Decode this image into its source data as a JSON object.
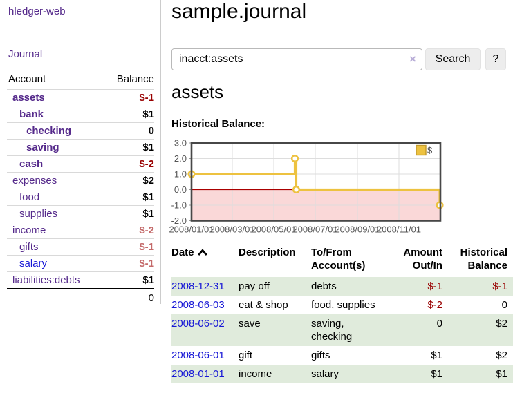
{
  "brand": "hledger-web",
  "nav": {
    "journal": "Journal"
  },
  "sidebar": {
    "header": {
      "account": "Account",
      "balance": "Balance"
    },
    "rows": [
      {
        "name": "assets",
        "balance": "$-1",
        "depth": 1,
        "active": true,
        "amount_class": "neg-strong",
        "link_class": ""
      },
      {
        "name": "bank",
        "balance": "$1",
        "depth": 2,
        "active": true,
        "amount_class": "",
        "link_class": ""
      },
      {
        "name": "checking",
        "balance": "0",
        "depth": 3,
        "active": true,
        "amount_class": "",
        "link_class": ""
      },
      {
        "name": "saving",
        "balance": "$1",
        "depth": 3,
        "active": true,
        "amount_class": "",
        "link_class": ""
      },
      {
        "name": "cash",
        "balance": "$-2",
        "depth": 2,
        "active": true,
        "amount_class": "neg-strong",
        "link_class": ""
      },
      {
        "name": "expenses",
        "balance": "$2",
        "depth": 1,
        "active": false,
        "amount_class": "",
        "link_class": ""
      },
      {
        "name": "food",
        "balance": "$1",
        "depth": 2,
        "active": false,
        "amount_class": "",
        "link_class": ""
      },
      {
        "name": "supplies",
        "balance": "$1",
        "depth": 2,
        "active": false,
        "amount_class": "",
        "link_class": ""
      },
      {
        "name": "income",
        "balance": "$-2",
        "depth": 1,
        "active": false,
        "amount_class": "neg-soft",
        "link_class": ""
      },
      {
        "name": "gifts",
        "balance": "$-1",
        "depth": 2,
        "active": false,
        "amount_class": "neg-soft",
        "link_class": ""
      },
      {
        "name": "salary",
        "balance": "$-1",
        "depth": 2,
        "active": false,
        "amount_class": "neg-soft",
        "link_class": "blue"
      },
      {
        "name": "liabilities:debts",
        "balance": "$1",
        "depth": 1,
        "active": false,
        "amount_class": "",
        "link_class": ""
      }
    ],
    "total": "0"
  },
  "main": {
    "title": "sample.journal",
    "search": {
      "value": "inacct:assets",
      "clear": "×",
      "button": "Search",
      "help": "?"
    },
    "account_title": "assets",
    "chart_heading": "Historical Balance:"
  },
  "chart_data": {
    "type": "line",
    "step": true,
    "title": "Historical Balance",
    "series_name": "$",
    "series_color": "#edc240",
    "points": [
      {
        "date": "2008-01-01",
        "value": 1
      },
      {
        "date": "2008-06-01",
        "value": 2
      },
      {
        "date": "2008-06-03",
        "value": 0
      },
      {
        "date": "2008-12-31",
        "value": -1
      }
    ],
    "x_start": "2008-01-01",
    "x_end": "2009-01-01",
    "ylim": [
      -2,
      3
    ],
    "ytick_labels": [
      "3.0",
      "2.0",
      "1.0",
      "0.0",
      "-1.0",
      "-2.0"
    ],
    "yticks": [
      3,
      2,
      1,
      0,
      -1,
      -2
    ],
    "xticks": [
      {
        "date": "2008-01-01",
        "label": "2008/01/01"
      },
      {
        "date": "2008-03-01",
        "label": "2008/03/01"
      },
      {
        "date": "2008-05-01",
        "label": "2008/05/01"
      },
      {
        "date": "2008-07-01",
        "label": "2008/07/01"
      },
      {
        "date": "2008-09-01",
        "label": "2008/09/01"
      },
      {
        "date": "2008-11-01",
        "label": "2008/11/01"
      }
    ],
    "grid": true,
    "legend_position": "top-right",
    "negative_fill": "#fad8d8",
    "zero_line_color": "#aa0000",
    "grid_color": "#dddddd",
    "border_color": "#474747",
    "axis_text_color": "#545454"
  },
  "register": {
    "columns": [
      "Date",
      "Description",
      "To/From Account(s)",
      "Amount Out/In",
      "Historical Balance"
    ],
    "sort": {
      "column": "Date",
      "direction": "ascending"
    },
    "rows": [
      {
        "date": "2008-12-31",
        "description": "pay off",
        "accounts": "debts",
        "amount": "$-1",
        "balance": "$-1",
        "amount_neg": true,
        "balance_neg": true
      },
      {
        "date": "2008-06-03",
        "description": "eat & shop",
        "accounts": "food, supplies",
        "amount": "$-2",
        "balance": "0",
        "amount_neg": true,
        "balance_neg": false
      },
      {
        "date": "2008-06-02",
        "description": "save",
        "accounts": "saving, checking",
        "amount": "0",
        "balance": "$2",
        "amount_neg": false,
        "balance_neg": false
      },
      {
        "date": "2008-06-01",
        "description": "gift",
        "accounts": "gifts",
        "amount": "$1",
        "balance": "$2",
        "amount_neg": false,
        "balance_neg": false
      },
      {
        "date": "2008-01-01",
        "description": "income",
        "accounts": "salary",
        "amount": "$1",
        "balance": "$1",
        "amount_neg": false,
        "balance_neg": false
      }
    ]
  }
}
